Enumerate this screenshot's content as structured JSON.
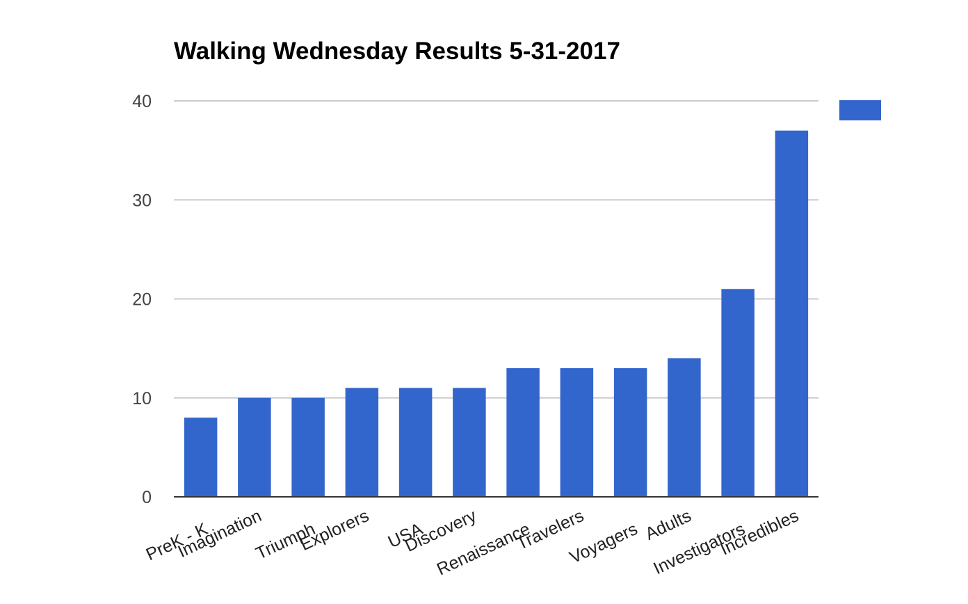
{
  "chart_data": {
    "type": "bar",
    "title": "Walking Wednesday Results 5-31-2017",
    "xlabel": "",
    "ylabel": "",
    "categories": [
      "PreK - K",
      "Imagination",
      "Triumph",
      "Explorers",
      "USA",
      "Discovery",
      "Renaissance",
      "Travelers",
      "Voyagers",
      "Adults",
      "Investigators",
      "Incredibles"
    ],
    "series": [
      {
        "values": [
          8,
          10,
          10,
          11,
          11,
          11,
          13,
          13,
          13,
          14,
          21,
          37
        ],
        "color": "#3366cc"
      }
    ],
    "ylim": [
      0,
      40
    ],
    "yticks": [
      "0",
      "10",
      "20",
      "30",
      "40"
    ],
    "grid": true,
    "legend": "right",
    "colors": {
      "bar": "#3366cc",
      "grid": "#cccccc",
      "axis": "#333333"
    }
  }
}
